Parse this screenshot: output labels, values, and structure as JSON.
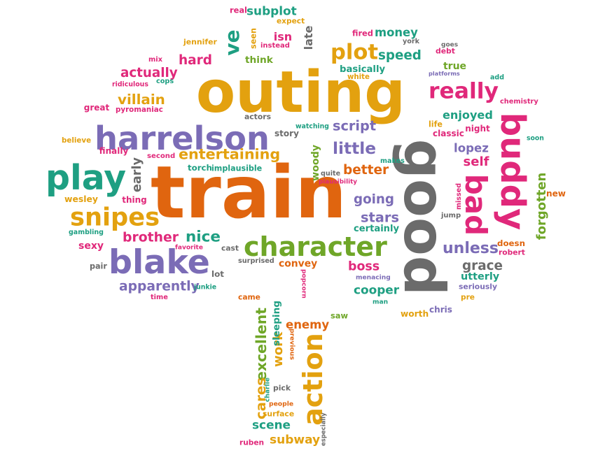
{
  "palette": {
    "orange": "#E0650F",
    "gold": "#E3A10F",
    "purple": "#7B6CB6",
    "teal": "#1E9F82",
    "pink": "#E0287A",
    "green": "#6FA628",
    "gray": "#6B6B6B"
  },
  "words": [
    {
      "text": "train",
      "color": "orange"
    },
    {
      "text": "outing",
      "color": "gold"
    },
    {
      "text": "good",
      "color": "gray"
    },
    {
      "text": "blake",
      "color": "purple"
    },
    {
      "text": "harrelson",
      "color": "purple"
    },
    {
      "text": "play",
      "color": "teal"
    },
    {
      "text": "buddy",
      "color": "pink"
    },
    {
      "text": "character",
      "color": "green"
    },
    {
      "text": "snipes",
      "color": "gold"
    },
    {
      "text": "bad",
      "color": "pink"
    },
    {
      "text": "really",
      "color": "pink"
    },
    {
      "text": "action",
      "color": "gold"
    },
    {
      "text": "plot",
      "color": "gold"
    },
    {
      "text": "ve",
      "color": "teal"
    },
    {
      "text": "entertaining",
      "color": "gold"
    },
    {
      "text": "apparently",
      "color": "purple"
    },
    {
      "text": "brother",
      "color": "pink"
    },
    {
      "text": "nice",
      "color": "teal"
    },
    {
      "text": "little",
      "color": "purple"
    },
    {
      "text": "better",
      "color": "orange"
    },
    {
      "text": "going",
      "color": "purple"
    },
    {
      "text": "stars",
      "color": "purple"
    },
    {
      "text": "unless",
      "color": "purple"
    },
    {
      "text": "grace",
      "color": "gray"
    },
    {
      "text": "boss",
      "color": "pink"
    },
    {
      "text": "cooper",
      "color": "teal"
    },
    {
      "text": "utterly",
      "color": "teal"
    },
    {
      "text": "villain",
      "color": "gold"
    },
    {
      "text": "actually",
      "color": "pink"
    },
    {
      "text": "hard",
      "color": "pink"
    },
    {
      "text": "speed",
      "color": "teal"
    },
    {
      "text": "money",
      "color": "teal"
    },
    {
      "text": "subplot",
      "color": "teal"
    },
    {
      "text": "enjoyed",
      "color": "teal"
    },
    {
      "text": "script",
      "color": "purple"
    },
    {
      "text": "lopez",
      "color": "purple"
    },
    {
      "text": "self",
      "color": "pink"
    },
    {
      "text": "scene",
      "color": "teal"
    },
    {
      "text": "subway",
      "color": "gold"
    },
    {
      "text": "work",
      "color": "gold"
    },
    {
      "text": "enemy",
      "color": "orange"
    },
    {
      "text": "excellent",
      "color": "green"
    },
    {
      "text": "cares",
      "color": "gold"
    },
    {
      "text": "sleeping",
      "color": "teal"
    },
    {
      "text": "forgotten",
      "color": "green"
    },
    {
      "text": "woody",
      "color": "green"
    },
    {
      "text": "early",
      "color": "gray"
    },
    {
      "text": "convey",
      "color": "orange"
    },
    {
      "text": "certainly",
      "color": "teal"
    },
    {
      "text": "basically",
      "color": "teal"
    },
    {
      "text": "isn",
      "color": "pink"
    },
    {
      "text": "seen",
      "color": "gold"
    },
    {
      "text": "late",
      "color": "gray"
    },
    {
      "text": "think",
      "color": "green"
    },
    {
      "text": "instead",
      "color": "pink"
    },
    {
      "text": "jennifer",
      "color": "gold"
    },
    {
      "text": "expect",
      "color": "gold"
    },
    {
      "text": "real",
      "color": "pink"
    },
    {
      "text": "fired",
      "color": "pink"
    },
    {
      "text": "york",
      "color": "gray"
    },
    {
      "text": "debt",
      "color": "pink"
    },
    {
      "text": "goes",
      "color": "gray"
    },
    {
      "text": "true",
      "color": "green"
    },
    {
      "text": "platforms",
      "color": "purple"
    },
    {
      "text": "add",
      "color": "teal"
    },
    {
      "text": "chemistry",
      "color": "pink"
    },
    {
      "text": "classic",
      "color": "pink"
    },
    {
      "text": "night",
      "color": "pink"
    },
    {
      "text": "life",
      "color": "gold"
    },
    {
      "text": "soon",
      "color": "teal"
    },
    {
      "text": "new",
      "color": "orange"
    },
    {
      "text": "missed",
      "color": "pink"
    },
    {
      "text": "jump",
      "color": "gray"
    },
    {
      "text": "doesn",
      "color": "orange"
    },
    {
      "text": "robert",
      "color": "pink"
    },
    {
      "text": "seriously",
      "color": "purple"
    },
    {
      "text": "pre",
      "color": "gold"
    },
    {
      "text": "chris",
      "color": "purple"
    },
    {
      "text": "worth",
      "color": "gold"
    },
    {
      "text": "man",
      "color": "teal"
    },
    {
      "text": "menacing",
      "color": "purple"
    },
    {
      "text": "saw",
      "color": "green"
    },
    {
      "text": "popcorn",
      "color": "pink"
    },
    {
      "text": "came",
      "color": "orange"
    },
    {
      "text": "previous",
      "color": "orange"
    },
    {
      "text": "charlie",
      "color": "teal"
    },
    {
      "text": "pick",
      "color": "gray"
    },
    {
      "text": "people",
      "color": "orange"
    },
    {
      "text": "surface",
      "color": "gold"
    },
    {
      "text": "especially",
      "color": "gray"
    },
    {
      "text": "ruben",
      "color": "pink"
    },
    {
      "text": "white",
      "color": "gold"
    },
    {
      "text": "makes",
      "color": "teal"
    },
    {
      "text": "plausibility",
      "color": "pink"
    },
    {
      "text": "quite",
      "color": "gray"
    },
    {
      "text": "watching",
      "color": "teal"
    },
    {
      "text": "story",
      "color": "gray"
    },
    {
      "text": "actors",
      "color": "gray"
    },
    {
      "text": "torch",
      "color": "teal"
    },
    {
      "text": "implausible",
      "color": "teal"
    },
    {
      "text": "second",
      "color": "pink"
    },
    {
      "text": "finally",
      "color": "pink"
    },
    {
      "text": "believe",
      "color": "gold"
    },
    {
      "text": "great",
      "color": "pink"
    },
    {
      "text": "pyromaniac",
      "color": "pink"
    },
    {
      "text": "ridiculous",
      "color": "pink"
    },
    {
      "text": "cops",
      "color": "teal"
    },
    {
      "text": "mix",
      "color": "pink"
    },
    {
      "text": "thing",
      "color": "pink"
    },
    {
      "text": "wesley",
      "color": "gold"
    },
    {
      "text": "gambling",
      "color": "teal"
    },
    {
      "text": "sexy",
      "color": "pink"
    },
    {
      "text": "favorite",
      "color": "pink"
    },
    {
      "text": "cast",
      "color": "gray"
    },
    {
      "text": "surprised",
      "color": "gray"
    },
    {
      "text": "pair",
      "color": "gray"
    },
    {
      "text": "junkie",
      "color": "teal"
    },
    {
      "text": "lot",
      "color": "gray"
    },
    {
      "text": "time",
      "color": "pink"
    }
  ]
}
